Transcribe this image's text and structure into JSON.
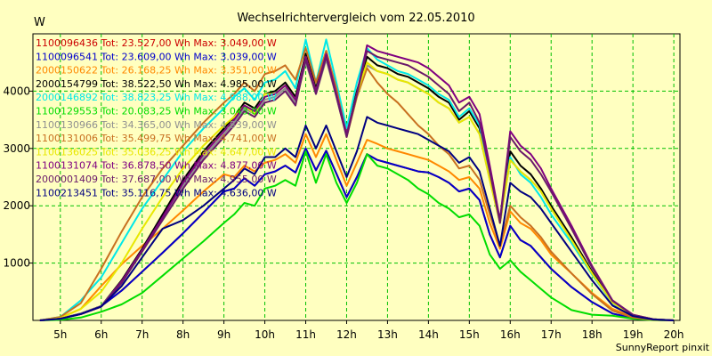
{
  "chart_data": {
    "type": "line",
    "title": "Wechselrichtervergleich vom 22.05.2010",
    "ylabel": "W",
    "footer": "SunnyReport pinxit",
    "xlim": [
      4.33,
      20.15
    ],
    "ylim": [
      0,
      5000
    ],
    "grid": true,
    "legend_position": "top-left",
    "x_ticks": [
      {
        "value": 5,
        "label": "5h"
      },
      {
        "value": 6,
        "label": "6h"
      },
      {
        "value": 7,
        "label": "7h"
      },
      {
        "value": 8,
        "label": "8h"
      },
      {
        "value": 9,
        "label": "9h"
      },
      {
        "value": 10,
        "label": "10h"
      },
      {
        "value": 11,
        "label": "11h"
      },
      {
        "value": 12,
        "label": "12h"
      },
      {
        "value": 13,
        "label": "13h"
      },
      {
        "value": 14,
        "label": "14h"
      },
      {
        "value": 15,
        "label": "15h"
      },
      {
        "value": 16,
        "label": "16h"
      },
      {
        "value": 17,
        "label": "17h"
      },
      {
        "value": 18,
        "label": "18h"
      },
      {
        "value": 19,
        "label": "19h"
      },
      {
        "value": 20,
        "label": "20h"
      }
    ],
    "y_ticks": [
      {
        "value": 1000,
        "label": "1000"
      },
      {
        "value": 2000,
        "label": "2000"
      },
      {
        "value": 3000,
        "label": "3000"
      },
      {
        "value": 4000,
        "label": "4000"
      }
    ],
    "x": [
      4.5,
      5.0,
      5.5,
      6.0,
      6.5,
      7.0,
      7.5,
      8.0,
      8.5,
      9.0,
      9.25,
      9.5,
      9.75,
      10.0,
      10.25,
      10.5,
      10.75,
      11.0,
      11.25,
      11.5,
      11.75,
      12.0,
      12.25,
      12.5,
      12.75,
      13.0,
      13.25,
      13.5,
      13.75,
      14.0,
      14.25,
      14.5,
      14.75,
      15.0,
      15.25,
      15.5,
      15.75,
      16.0,
      16.25,
      16.5,
      16.75,
      17.0,
      17.5,
      18.0,
      18.5,
      19.0,
      19.5,
      20.0
    ],
    "series": [
      {
        "name": "1100096436 Tot: 23.527,00 Wh Max: 3.049,00 W",
        "color": "#cc0000",
        "values": [
          0,
          30,
          120,
          250,
          520,
          850,
          1180,
          1520,
          1880,
          2250,
          2300,
          2480,
          2350,
          2550,
          2600,
          2700,
          2580,
          3000,
          2620,
          2960,
          2560,
          2150,
          2500,
          2900,
          2800,
          2750,
          2700,
          2650,
          2600,
          2580,
          2500,
          2400,
          2250,
          2300,
          2100,
          1500,
          1100,
          1650,
          1400,
          1300,
          1100,
          900,
          580,
          320,
          120,
          40,
          10,
          0
        ]
      },
      {
        "name": "1100096541 Tot: 23.609,00 Wh Max: 3.039,00 W",
        "color": "#0000cc",
        "values": [
          0,
          30,
          120,
          250,
          520,
          850,
          1180,
          1520,
          1880,
          2250,
          2300,
          2480,
          2350,
          2550,
          2600,
          2700,
          2580,
          3000,
          2620,
          2960,
          2560,
          2150,
          2500,
          2900,
          2800,
          2750,
          2700,
          2650,
          2600,
          2580,
          2500,
          2400,
          2250,
          2300,
          2100,
          1500,
          1100,
          1650,
          1400,
          1300,
          1100,
          900,
          580,
          320,
          120,
          40,
          10,
          0
        ]
      },
      {
        "name": "2000150622 Tot: 26.168,25 Wh Max: 3.351,00 W",
        "color": "#ff8800",
        "values": [
          0,
          45,
          200,
          600,
          980,
          1300,
          1600,
          1920,
          2250,
          2550,
          2500,
          2700,
          2600,
          2750,
          2800,
          2900,
          2750,
          3250,
          2850,
          3250,
          2800,
          2350,
          2750,
          3150,
          3080,
          3000,
          2950,
          2900,
          2850,
          2800,
          2700,
          2600,
          2450,
          2500,
          2300,
          1700,
          1250,
          1900,
          1700,
          1600,
          1400,
          1150,
          820,
          480,
          200,
          60,
          15,
          0
        ]
      },
      {
        "name": "2000154799 Tot: 38.522,50 Wh Max: 4.985,00 W",
        "color": "#000000",
        "values": [
          0,
          30,
          120,
          250,
          700,
          1250,
          1850,
          2450,
          2950,
          3350,
          3550,
          3800,
          3700,
          3950,
          4000,
          4150,
          3900,
          4650,
          4050,
          4700,
          4000,
          3300,
          4000,
          4600,
          4450,
          4400,
          4300,
          4250,
          4150,
          4050,
          3900,
          3800,
          3500,
          3650,
          3350,
          2500,
          1750,
          2950,
          2700,
          2550,
          2300,
          2000,
          1450,
          850,
          320,
          90,
          20,
          0
        ]
      },
      {
        "name": "2000146892 Tot: 38.823,25 Wh Max: 4.988,00 W",
        "color": "#00e8e8",
        "values": [
          0,
          60,
          350,
          750,
          1350,
          1950,
          2450,
          2950,
          3350,
          3700,
          3900,
          4050,
          3850,
          4150,
          4200,
          4350,
          4050,
          4900,
          4150,
          4900,
          4150,
          3350,
          4150,
          4750,
          4550,
          4450,
          4350,
          4300,
          4200,
          4100,
          3950,
          3850,
          3550,
          3700,
          3400,
          2550,
          1700,
          2850,
          2550,
          2400,
          2150,
          1850,
          1350,
          800,
          300,
          80,
          20,
          0
        ]
      },
      {
        "name": "1100129553 Tot: 20.083,25 Wh Max: 3.043,00 W",
        "color": "#00dd00",
        "values": [
          0,
          10,
          50,
          150,
          280,
          480,
          780,
          1080,
          1380,
          1700,
          1850,
          2050,
          2000,
          2300,
          2350,
          2450,
          2350,
          2950,
          2400,
          2900,
          2400,
          2050,
          2400,
          2900,
          2700,
          2650,
          2550,
          2450,
          2300,
          2200,
          2050,
          1950,
          1800,
          1850,
          1650,
          1150,
          900,
          1050,
          850,
          700,
          550,
          400,
          180,
          100,
          80,
          30,
          5,
          0
        ]
      },
      {
        "name": "1100130966 Tot: 34.365,00 Wh Max: 4.539,00 W",
        "color": "#909090",
        "values": [
          0,
          30,
          120,
          250,
          680,
          1200,
          1780,
          2350,
          2850,
          3250,
          3450,
          3700,
          3600,
          3850,
          3900,
          4050,
          3800,
          4500,
          3950,
          4550,
          3900,
          3200,
          3900,
          4450,
          4350,
          4300,
          4200,
          4150,
          4050,
          3950,
          3800,
          3700,
          3450,
          3550,
          3250,
          2450,
          1700,
          2800,
          2600,
          2450,
          2250,
          1950,
          1400,
          820,
          310,
          85,
          20,
          0
        ]
      },
      {
        "name": "1100131006 Tot: 35.499,75 Wh Max: 4.741,00 W",
        "color": "#c87020",
        "values": [
          0,
          60,
          300,
          900,
          1550,
          2150,
          2650,
          3050,
          3450,
          3800,
          3950,
          4150,
          4000,
          4300,
          4350,
          4450,
          4200,
          4750,
          4150,
          4700,
          4050,
          3200,
          3900,
          4400,
          4150,
          3950,
          3800,
          3600,
          3400,
          3250,
          3050,
          2900,
          2650,
          2700,
          2450,
          1850,
          1300,
          2000,
          1800,
          1650,
          1450,
          1200,
          820,
          460,
          170,
          50,
          10,
          0
        ]
      },
      {
        "name": "1100136025 Tot: 35.036,25 Wh Max: 4.647,00 W",
        "color": "#e8e800",
        "values": [
          0,
          40,
          200,
          500,
          1000,
          1600,
          2150,
          2650,
          3050,
          3400,
          3550,
          3750,
          3600,
          3950,
          3950,
          4100,
          3850,
          4600,
          4000,
          4650,
          3950,
          3250,
          3950,
          4500,
          4350,
          4300,
          4200,
          4150,
          4050,
          3950,
          3800,
          3700,
          3450,
          3550,
          3250,
          2450,
          1700,
          2800,
          2600,
          2450,
          2250,
          1950,
          1400,
          820,
          310,
          85,
          20,
          0
        ]
      },
      {
        "name": "1100131074 Tot: 36.878,50 Wh Max: 4.877,00 W",
        "color": "#800080",
        "values": [
          0,
          30,
          110,
          240,
          680,
          1230,
          1800,
          2400,
          2900,
          3300,
          3500,
          3750,
          3650,
          3900,
          3950,
          4100,
          3850,
          4600,
          4000,
          4650,
          3950,
          3250,
          3950,
          4800,
          4700,
          4650,
          4600,
          4550,
          4500,
          4400,
          4250,
          4100,
          3800,
          3900,
          3600,
          2700,
          1750,
          3300,
          3050,
          2900,
          2650,
          2300,
          1650,
          950,
          350,
          100,
          20,
          0
        ]
      },
      {
        "name": "2000001409 Tot: 37.687,00 Wh Max: 4.955,00 W",
        "color": "#6a1a6a",
        "values": [
          0,
          30,
          110,
          240,
          650,
          1200,
          1750,
          2300,
          2800,
          3200,
          3400,
          3650,
          3550,
          3800,
          3850,
          4000,
          3750,
          4550,
          3950,
          4600,
          3900,
          3200,
          3950,
          4700,
          4600,
          4550,
          4500,
          4450,
          4350,
          4250,
          4100,
          3950,
          3650,
          3800,
          3450,
          2600,
          1700,
          3200,
          2950,
          2800,
          2550,
          2250,
          1600,
          920,
          340,
          95,
          20,
          0
        ]
      },
      {
        "name": "1100213451 Tot: 35.116,75 Wh Max: 4.636,00 W",
        "color": "#000080",
        "values": [
          0,
          30,
          110,
          240,
          600,
          1100,
          1600,
          1750,
          2000,
          2300,
          2450,
          2650,
          2550,
          2850,
          2850,
          3000,
          2850,
          3400,
          3000,
          3400,
          2950,
          2500,
          2950,
          3550,
          3450,
          3400,
          3350,
          3300,
          3250,
          3150,
          3050,
          2950,
          2750,
          2850,
          2600,
          1950,
          1300,
          2400,
          2250,
          2150,
          1950,
          1700,
          1200,
          700,
          260,
          75,
          15,
          0
        ]
      }
    ]
  }
}
